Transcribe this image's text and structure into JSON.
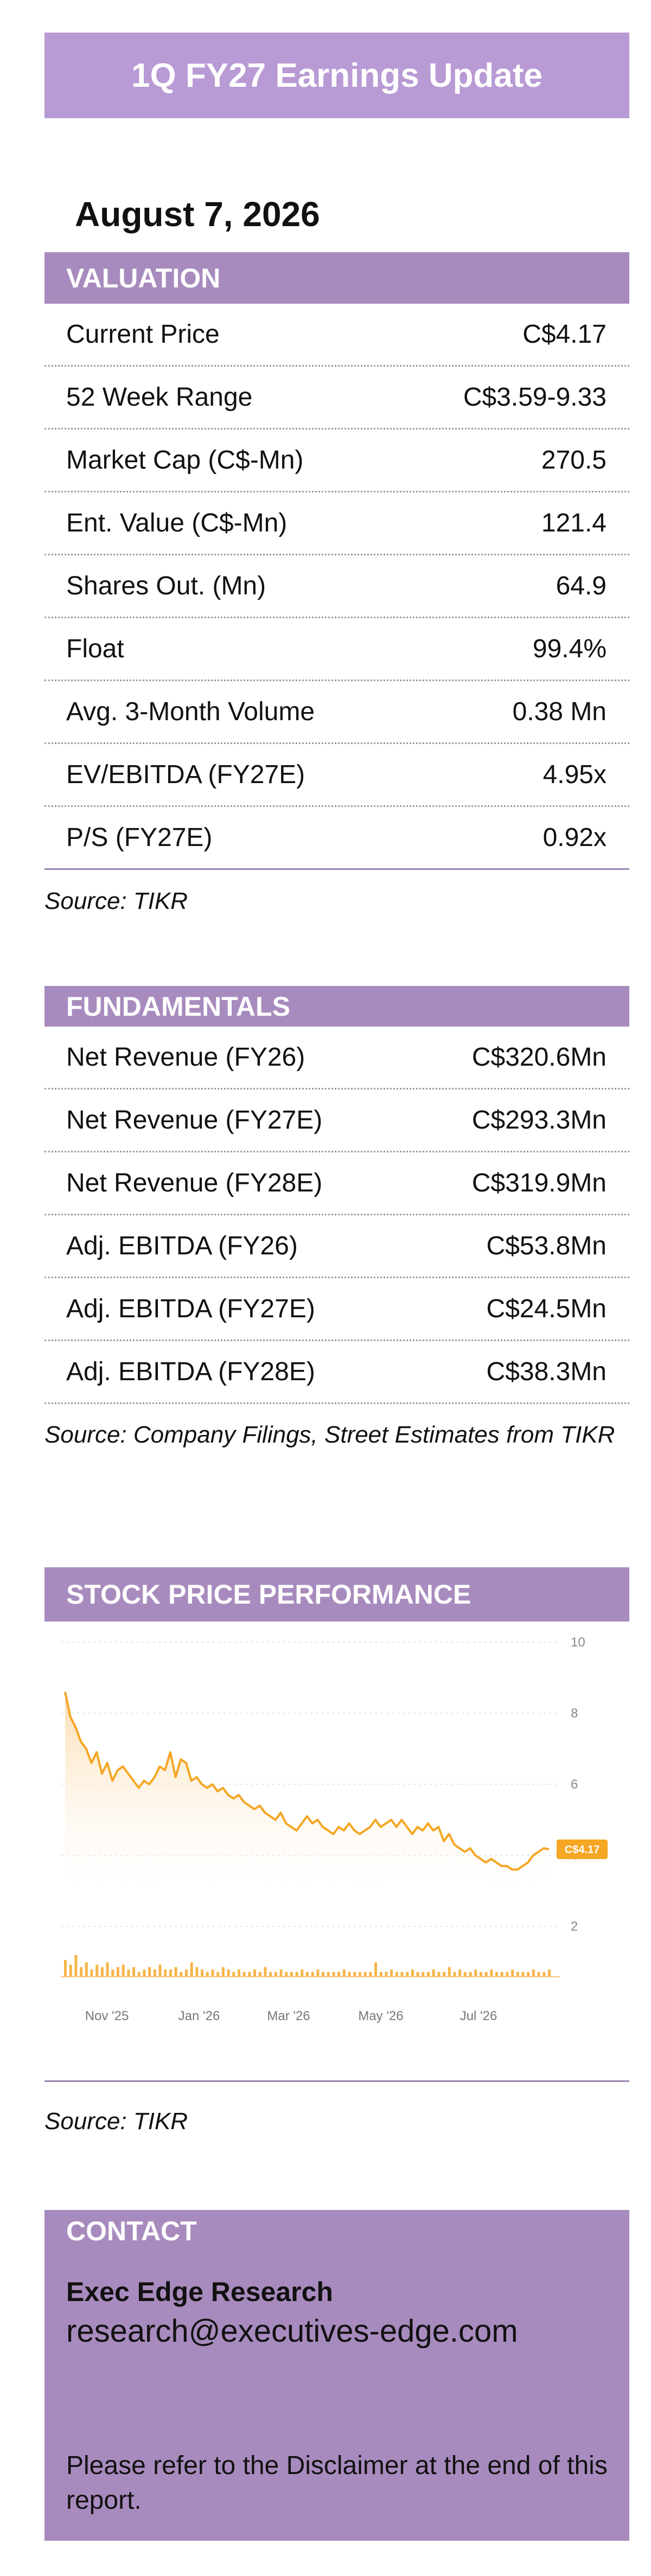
{
  "title": "1Q FY27 Earnings Update",
  "date": "August 7, 2026",
  "valuation": {
    "header": "VALUATION",
    "rows": [
      {
        "label": "Current Price",
        "value": "C$4.17"
      },
      {
        "label": "52 Week Range",
        "value": "C$3.59-9.33"
      },
      {
        "label": "Market Cap (C$-Mn)",
        "value": "270.5"
      },
      {
        "label": "Ent. Value (C$-Mn)",
        "value": "121.4"
      },
      {
        "label": "Shares Out. (Mn)",
        "value": "64.9"
      },
      {
        "label": "Float",
        "value": "99.4%"
      },
      {
        "label": "Avg. 3-Month Volume",
        "value": "0.38 Mn"
      },
      {
        "label": "EV/EBITDA (FY27E)",
        "value": "4.95x"
      },
      {
        "label": "P/S (FY27E)",
        "value": "0.92x"
      }
    ],
    "source": "Source: TIKR"
  },
  "fundamentals": {
    "header": "FUNDAMENTALS",
    "rows": [
      {
        "label": "Net Revenue (FY26)",
        "value": "C$320.6Mn"
      },
      {
        "label": "Net Revenue (FY27E)",
        "value": "C$293.3Mn"
      },
      {
        "label": "Net Revenue (FY28E)",
        "value": "C$319.9Mn"
      },
      {
        "label": "Adj. EBITDA (FY26)",
        "value": "C$53.8Mn"
      },
      {
        "label": "Adj. EBITDA (FY27E)",
        "value": "C$24.5Mn"
      },
      {
        "label": "Adj. EBITDA (FY28E)",
        "value": "C$38.3Mn"
      }
    ],
    "source": "Source: Company Filings, Street Estimates from TIKR"
  },
  "stock": {
    "header": "STOCK PRICE PERFORMANCE",
    "source": "Source: TIKR"
  },
  "chart_data": {
    "type": "area",
    "title": "",
    "xlabel": "",
    "ylabel": "",
    "ylim": [
      1.5,
      10
    ],
    "yticks": [
      "10",
      "8",
      "6",
      "4",
      "2"
    ],
    "xticks": [
      "Nov '25",
      "Jan '26",
      "Mar '26",
      "May '26",
      "Jul '26"
    ],
    "price_label": "C$4.17",
    "grid": true,
    "line_color": "#f5a623",
    "price_series": [
      8.6,
      7.9,
      7.6,
      7.2,
      7.0,
      6.6,
      6.9,
      6.3,
      6.6,
      6.1,
      6.4,
      6.5,
      6.3,
      6.1,
      5.9,
      6.1,
      6.0,
      6.2,
      6.5,
      6.4,
      6.9,
      6.2,
      6.7,
      6.6,
      6.1,
      6.2,
      6.0,
      5.9,
      6.0,
      5.8,
      5.9,
      5.7,
      5.6,
      5.7,
      5.5,
      5.4,
      5.3,
      5.4,
      5.2,
      5.1,
      5.0,
      5.2,
      4.9,
      4.8,
      4.7,
      4.9,
      5.1,
      4.9,
      5.0,
      4.8,
      4.7,
      4.6,
      4.8,
      4.7,
      4.9,
      4.7,
      4.6,
      4.7,
      4.8,
      5.0,
      4.8,
      4.9,
      5.0,
      4.8,
      5.0,
      4.8,
      4.6,
      4.8,
      4.7,
      4.9,
      4.7,
      4.8,
      4.4,
      4.6,
      4.3,
      4.2,
      4.1,
      4.2,
      4.0,
      3.9,
      3.8,
      3.9,
      3.8,
      3.7,
      3.7,
      3.6,
      3.6,
      3.7,
      3.8,
      4.0,
      4.1,
      4.2,
      4.17
    ],
    "volume_series": [
      0.7,
      0.5,
      0.9,
      0.4,
      0.6,
      0.3,
      0.5,
      0.4,
      0.6,
      0.3,
      0.4,
      0.5,
      0.3,
      0.4,
      0.2,
      0.3,
      0.4,
      0.3,
      0.5,
      0.3,
      0.3,
      0.4,
      0.2,
      0.3,
      0.6,
      0.4,
      0.3,
      0.2,
      0.3,
      0.2,
      0.4,
      0.3,
      0.2,
      0.3,
      0.2,
      0.2,
      0.3,
      0.2,
      0.4,
      0.2,
      0.2,
      0.3,
      0.2,
      0.2,
      0.2,
      0.3,
      0.2,
      0.2,
      0.3,
      0.2,
      0.2,
      0.2,
      0.2,
      0.3,
      0.2,
      0.2,
      0.2,
      0.2,
      0.2,
      0.6,
      0.2,
      0.2,
      0.3,
      0.2,
      0.2,
      0.2,
      0.3,
      0.2,
      0.2,
      0.2,
      0.3,
      0.2,
      0.2,
      0.4,
      0.2,
      0.3,
      0.2,
      0.2,
      0.3,
      0.2,
      0.2,
      0.3,
      0.2,
      0.2,
      0.2,
      0.3,
      0.2,
      0.2,
      0.2,
      0.3,
      0.2,
      0.2,
      0.3
    ]
  },
  "contact": {
    "header": "CONTACT",
    "name": "Exec Edge Research",
    "email": "research@executives-edge.com",
    "disclaimer": "Please refer to the Disclaimer at the end of this report."
  }
}
